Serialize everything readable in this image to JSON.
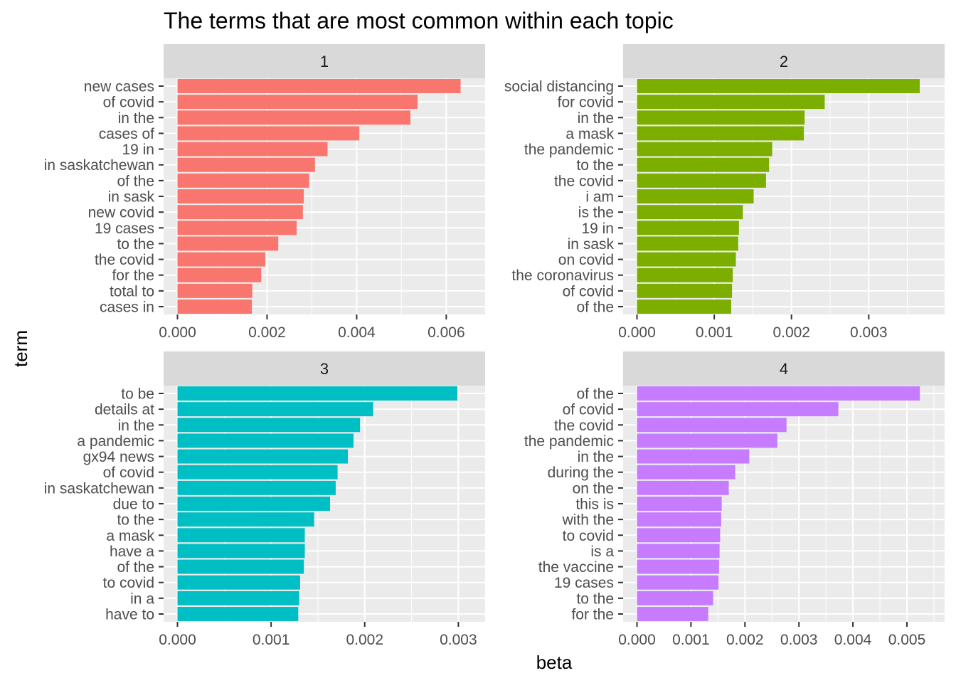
{
  "chart_data": {
    "type": "bar",
    "orientation": "horizontal",
    "title": "The terms that are most common within each topic",
    "xlabel": "beta",
    "ylabel": "term",
    "facets": [
      {
        "label": "1",
        "color": "#F8766D",
        "xlim": [
          0,
          0.00655
        ],
        "ticks": [
          0,
          0.002,
          0.004,
          0.006
        ],
        "tick_labels": [
          "0.000",
          "0.002",
          "0.004",
          "0.006"
        ],
        "categories": [
          "new cases",
          "of covid",
          "in the",
          "cases of",
          "19 in",
          "in saskatchewan",
          "of the",
          "in sask",
          "new covid",
          "19 cases",
          "to the",
          "the covid",
          "for the",
          "total to",
          "cases in"
        ],
        "values": [
          0.00632,
          0.00536,
          0.0052,
          0.00406,
          0.00335,
          0.00307,
          0.00294,
          0.00282,
          0.0028,
          0.00266,
          0.00225,
          0.00196,
          0.00187,
          0.00167,
          0.00166
        ]
      },
      {
        "label": "2",
        "color": "#7CAE00",
        "xlim": [
          0,
          0.003798
        ],
        "ticks": [
          0,
          0.001,
          0.002,
          0.003
        ],
        "tick_labels": [
          "0.000",
          "0.001",
          "0.002",
          "0.003"
        ],
        "categories": [
          "social distancing",
          "for covid",
          "in the",
          "a mask",
          "the pandemic",
          "to the",
          "the covid",
          "i am",
          "is the",
          "19 in",
          "in sask",
          "on covid",
          "the coronavirus",
          "of covid",
          "of the"
        ],
        "values": [
          0.00366,
          0.00243,
          0.00217,
          0.00216,
          0.00175,
          0.00171,
          0.00167,
          0.00151,
          0.00137,
          0.00132,
          0.00131,
          0.00128,
          0.00124,
          0.00123,
          0.00122
        ]
      },
      {
        "label": "3",
        "color": "#00BFC4",
        "xlim": [
          0,
          0.003134
        ],
        "ticks": [
          0,
          0.001,
          0.002,
          0.003
        ],
        "tick_labels": [
          "0.000",
          "0.001",
          "0.002",
          "0.003"
        ],
        "categories": [
          "to be",
          "details at",
          "in the",
          "a pandemic",
          "gx94 news",
          "of covid",
          "in saskatchewan",
          "due to",
          "to the",
          "a mask",
          "have a",
          "of the",
          "to covid",
          "in a",
          "have to"
        ],
        "values": [
          0.00299,
          0.00209,
          0.00195,
          0.00188,
          0.00182,
          0.00171,
          0.00169,
          0.00163,
          0.00146,
          0.00136,
          0.00136,
          0.00135,
          0.00131,
          0.0013,
          0.00129
        ]
      },
      {
        "label": "4",
        "color": "#C77CFF",
        "xlim": [
          0,
          0.005435
        ],
        "ticks": [
          0,
          0.001,
          0.002,
          0.003,
          0.004,
          0.005
        ],
        "tick_labels": [
          "0.000",
          "0.001",
          "0.002",
          "0.003",
          "0.004",
          "0.005"
        ],
        "categories": [
          "of the",
          "of covid",
          "the covid",
          "the pandemic",
          "in the",
          "during the",
          "on the",
          "this is",
          "with the",
          "to covid",
          "is a",
          "the vaccine",
          "19 cases",
          "to the",
          "for the"
        ],
        "values": [
          0.00524,
          0.00373,
          0.00277,
          0.0026,
          0.00208,
          0.00182,
          0.0017,
          0.00157,
          0.00156,
          0.00154,
          0.00153,
          0.00152,
          0.00151,
          0.00141,
          0.00132
        ]
      }
    ]
  }
}
